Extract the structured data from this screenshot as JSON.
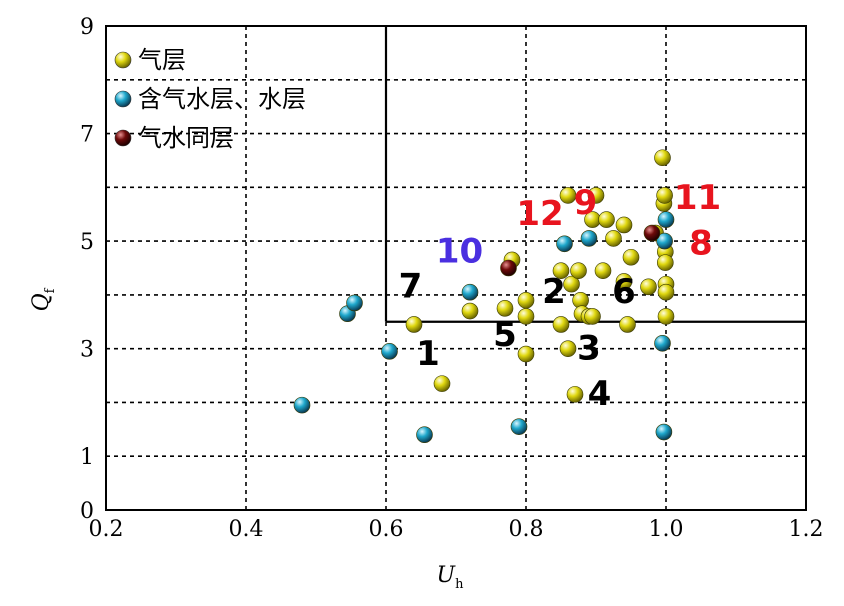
{
  "chart_data": {
    "type": "scatter",
    "xlabel": "U",
    "xlabel_sub": "h",
    "ylabel": "Q",
    "ylabel_sub": "f",
    "xlim": [
      0.2,
      1.2
    ],
    "ylim": [
      0,
      9
    ],
    "xticks": [
      {
        "value": 0.2,
        "label": "0.2"
      },
      {
        "value": 0.4,
        "label": "0.4"
      },
      {
        "value": 0.6,
        "label": "0.6"
      },
      {
        "value": 0.8,
        "label": "0.8"
      },
      {
        "value": 1.0,
        "label": "1.0"
      },
      {
        "value": 1.2,
        "label": "1.2"
      }
    ],
    "yticks": [
      {
        "value": 0,
        "label": "0"
      },
      {
        "value": 1,
        "label": "1"
      },
      {
        "value": 3,
        "label": "3"
      },
      {
        "value": 5,
        "label": "5"
      },
      {
        "value": 7,
        "label": "7"
      },
      {
        "value": 9,
        "label": "9"
      }
    ],
    "grid": true,
    "legend_position": "top-left",
    "threshold_lines": {
      "x": 0.6,
      "y": 3.5
    },
    "series": [
      {
        "name": "气层",
        "color": "#e0d810",
        "points": [
          [
            0.64,
            3.45
          ],
          [
            0.68,
            2.35
          ],
          [
            0.72,
            3.7
          ],
          [
            0.77,
            3.75
          ],
          [
            0.78,
            4.65
          ],
          [
            0.8,
            3.9
          ],
          [
            0.8,
            3.6
          ],
          [
            0.8,
            2.9
          ],
          [
            0.85,
            3.45
          ],
          [
            0.85,
            4.45
          ],
          [
            0.86,
            5.85
          ],
          [
            0.86,
            3.0
          ],
          [
            0.865,
            4.2
          ],
          [
            0.87,
            2.15
          ],
          [
            0.875,
            4.45
          ],
          [
            0.878,
            3.9
          ],
          [
            0.88,
            3.65
          ],
          [
            0.89,
            3.6
          ],
          [
            0.895,
            5.4
          ],
          [
            0.895,
            3.6
          ],
          [
            0.9,
            5.85
          ],
          [
            0.91,
            4.45
          ],
          [
            0.915,
            5.4
          ],
          [
            0.925,
            5.05
          ],
          [
            0.94,
            5.3
          ],
          [
            0.94,
            4.25
          ],
          [
            0.945,
            3.45
          ],
          [
            0.95,
            4.7
          ],
          [
            0.975,
            4.15
          ],
          [
            0.985,
            5.15
          ],
          [
            0.995,
            6.55
          ],
          [
            0.997,
            5.7
          ],
          [
            0.998,
            5.85
          ],
          [
            0.999,
            4.8
          ],
          [
            0.999,
            4.6
          ],
          [
            1.0,
            4.2
          ],
          [
            1.0,
            4.05
          ],
          [
            1.0,
            3.6
          ]
        ]
      },
      {
        "name": "含气水层、水层",
        "color": "#1fa8cc",
        "points": [
          [
            0.48,
            1.95
          ],
          [
            0.545,
            3.65
          ],
          [
            0.555,
            3.85
          ],
          [
            0.605,
            2.95
          ],
          [
            0.655,
            1.4
          ],
          [
            0.72,
            4.05
          ],
          [
            0.79,
            1.55
          ],
          [
            0.855,
            4.95
          ],
          [
            0.89,
            5.05
          ],
          [
            0.995,
            3.1
          ],
          [
            0.997,
            1.45
          ],
          [
            0.998,
            5.0
          ],
          [
            1.0,
            5.4
          ]
        ]
      },
      {
        "name": "气水同层",
        "color": "#6e0a0a",
        "points": [
          [
            0.775,
            4.5
          ],
          [
            0.98,
            5.15
          ]
        ]
      }
    ],
    "annotations": [
      {
        "text": "1",
        "x": 0.66,
        "y": 2.7,
        "color": "#000000"
      },
      {
        "text": "2",
        "x": 0.84,
        "y": 3.85,
        "color": "#000000"
      },
      {
        "text": "3",
        "x": 0.89,
        "y": 2.8,
        "color": "#000000"
      },
      {
        "text": "4",
        "x": 0.905,
        "y": 1.95,
        "color": "#000000"
      },
      {
        "text": "5",
        "x": 0.77,
        "y": 3.05,
        "color": "#000000"
      },
      {
        "text": "6",
        "x": 0.94,
        "y": 3.85,
        "color": "#000000"
      },
      {
        "text": "7",
        "x": 0.635,
        "y": 3.95,
        "color": "#000000"
      },
      {
        "text": "8",
        "x": 1.05,
        "y": 4.75,
        "color": "#e8141e"
      },
      {
        "text": "9",
        "x": 0.885,
        "y": 5.5,
        "color": "#e8141e"
      },
      {
        "text": "10",
        "x": 0.705,
        "y": 4.6,
        "color": "#4a2fe0"
      },
      {
        "text": "11",
        "x": 1.045,
        "y": 5.6,
        "color": "#e8141e"
      },
      {
        "text": "12",
        "x": 0.82,
        "y": 5.3,
        "color": "#e8141e"
      }
    ]
  }
}
